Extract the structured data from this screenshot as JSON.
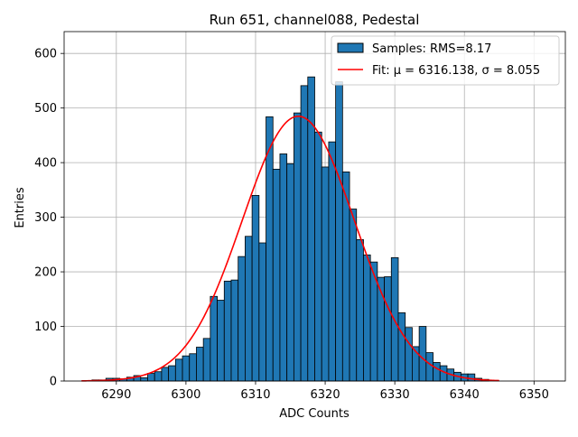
{
  "chart_data": {
    "type": "bar",
    "title": "Run 651, channel088, Pedestal",
    "xlabel": "ADC Counts",
    "ylabel": "Entries",
    "xlim": [
      6282.5,
      6354.5
    ],
    "ylim": [
      0,
      640
    ],
    "grid": true,
    "legend_position": "top-right",
    "xticks": [
      6290,
      6300,
      6310,
      6320,
      6330,
      6340,
      6350
    ],
    "yticks": [
      0,
      100,
      200,
      300,
      400,
      500,
      600
    ],
    "series": [
      {
        "name": "Samples: RMS=8.17",
        "kind": "histogram",
        "color": "#1f77b4",
        "edgecolor": "#000000",
        "bin_width": 1,
        "x": [
          6287,
          6288,
          6289,
          6290,
          6291,
          6292,
          6293,
          6294,
          6295,
          6296,
          6297,
          6298,
          6299,
          6300,
          6301,
          6302,
          6303,
          6304,
          6305,
          6306,
          6307,
          6308,
          6309,
          6310,
          6311,
          6312,
          6313,
          6314,
          6315,
          6316,
          6317,
          6318,
          6319,
          6320,
          6321,
          6322,
          6323,
          6324,
          6325,
          6326,
          6327,
          6328,
          6329,
          6330,
          6331,
          6332,
          6333,
          6334,
          6335,
          6336,
          6337,
          6338,
          6339,
          6340,
          6341,
          6342,
          6343
        ],
        "values": [
          2,
          2,
          5,
          5,
          4,
          7,
          10,
          6,
          14,
          17,
          25,
          28,
          40,
          46,
          50,
          62,
          78,
          155,
          148,
          183,
          185,
          228,
          265,
          340,
          253,
          484,
          388,
          416,
          398,
          491,
          541,
          557,
          456,
          392,
          438,
          548,
          383,
          315,
          259,
          231,
          218,
          190,
          191,
          226,
          125,
          98,
          63,
          100,
          52,
          34,
          28,
          22,
          16,
          13,
          13,
          5,
          3
        ]
      },
      {
        "name": "Fit: μ = 6316.138, σ = 8.055",
        "kind": "gaussian_fit",
        "color": "#ff0000",
        "mu": 6316.138,
        "sigma": 8.055,
        "amplitude": 485,
        "x_range": [
          6285,
          6345
        ]
      }
    ]
  }
}
